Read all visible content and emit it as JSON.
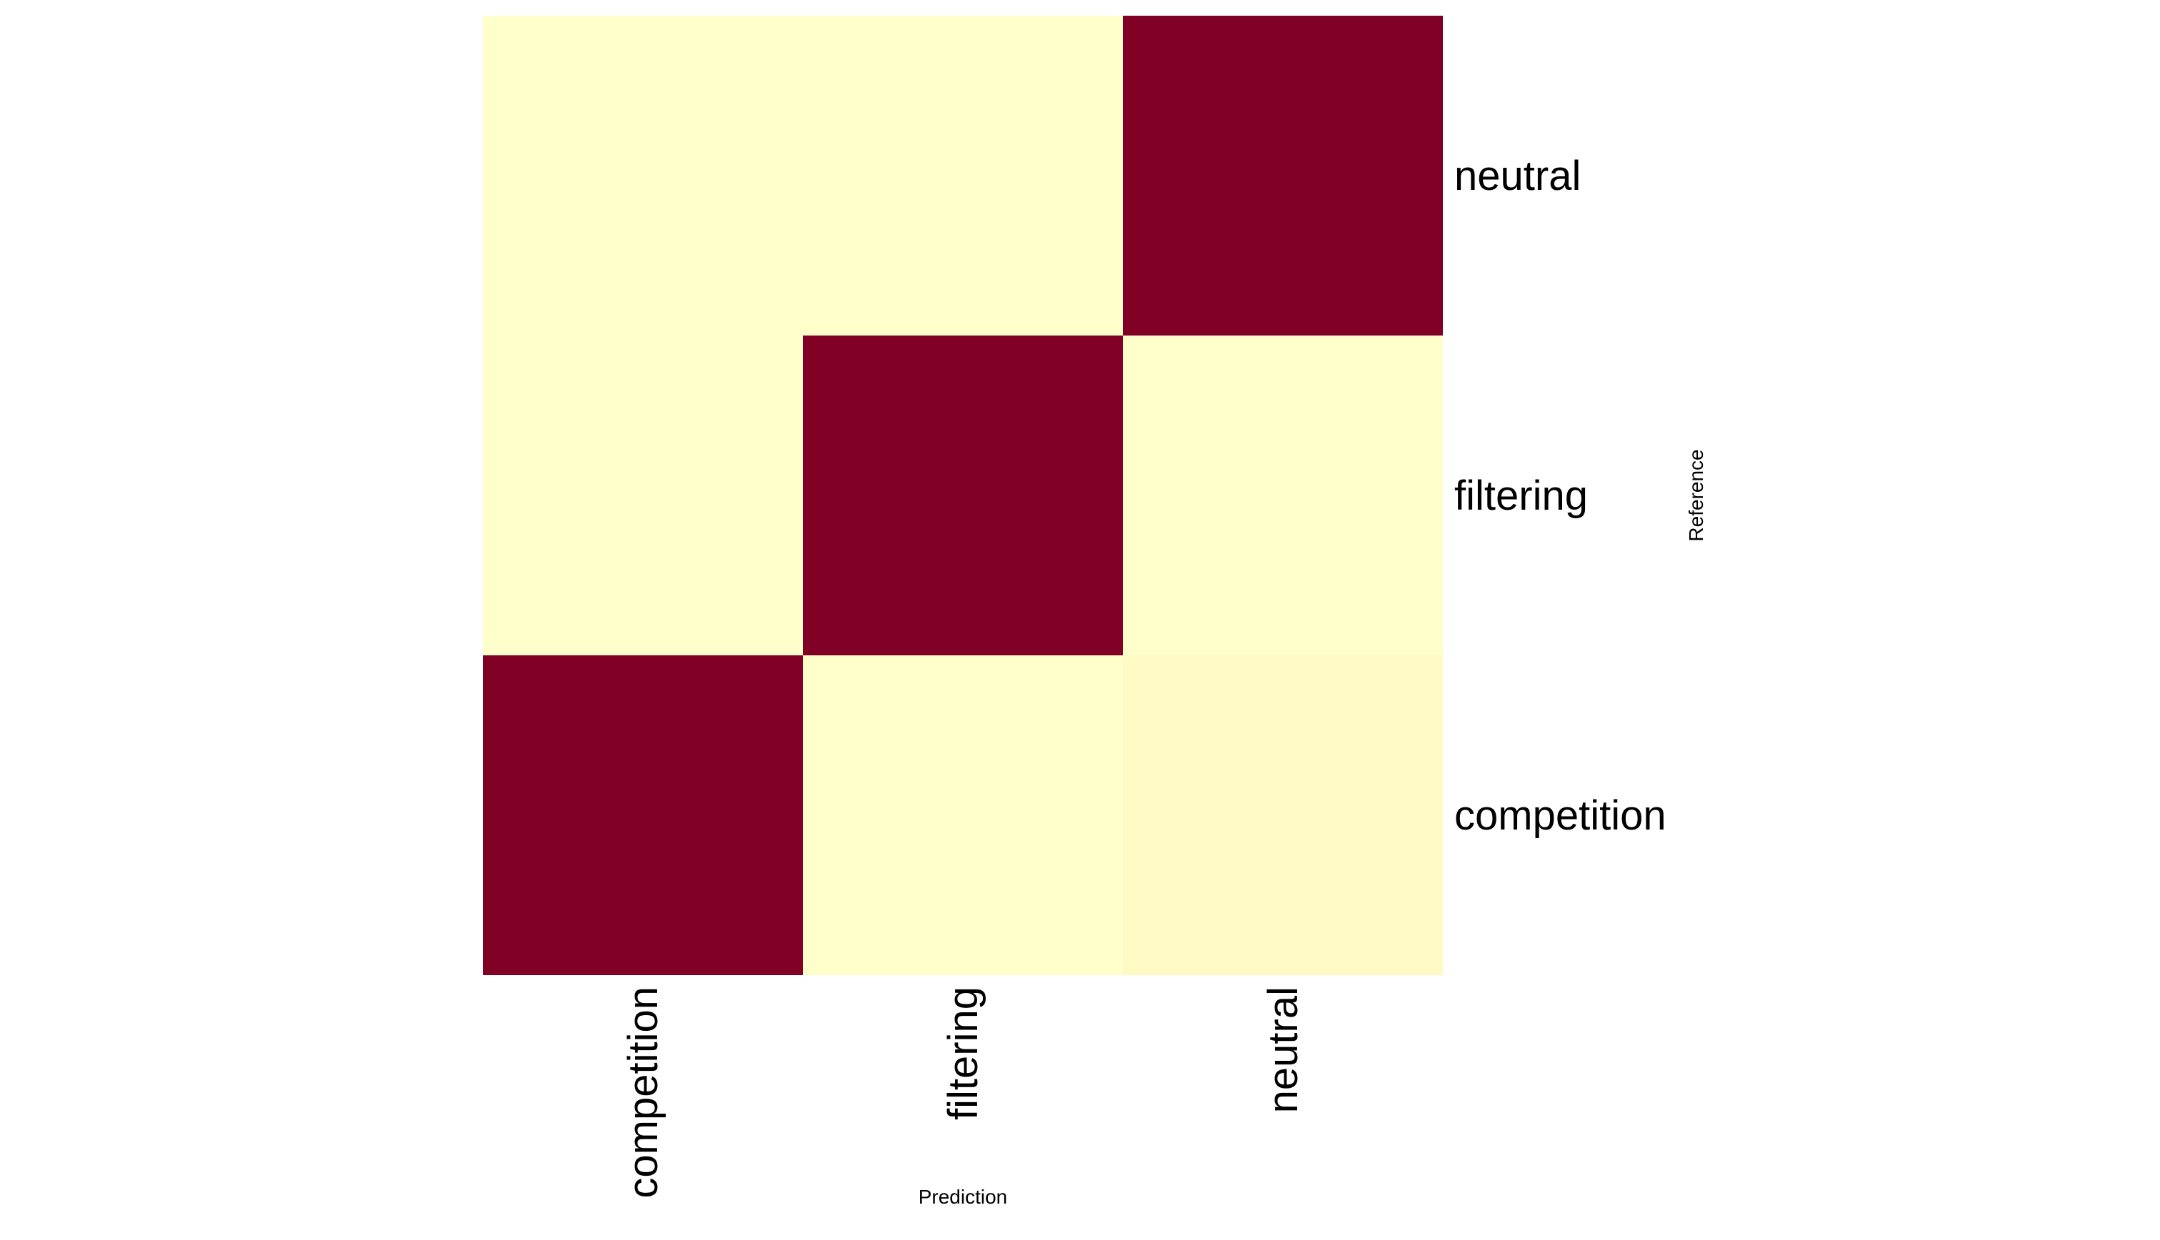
{
  "chart_data": {
    "type": "heatmap",
    "title": "",
    "xlabel": "Prediction",
    "ylabel": "Reference",
    "x_categories": [
      "competition",
      "filtering",
      "neutral"
    ],
    "y_categories": [
      "competition",
      "filtering",
      "neutral"
    ],
    "values": [
      [
        1.0,
        0.0,
        0.03
      ],
      [
        0.0,
        1.0,
        0.0
      ],
      [
        0.0,
        0.0,
        1.0
      ]
    ],
    "value_range": [
      0,
      1
    ],
    "colormap": {
      "low": "#FFFFCC",
      "mid": "#FEB24C",
      "high": "#800026"
    },
    "legend": "none",
    "grid": false
  }
}
